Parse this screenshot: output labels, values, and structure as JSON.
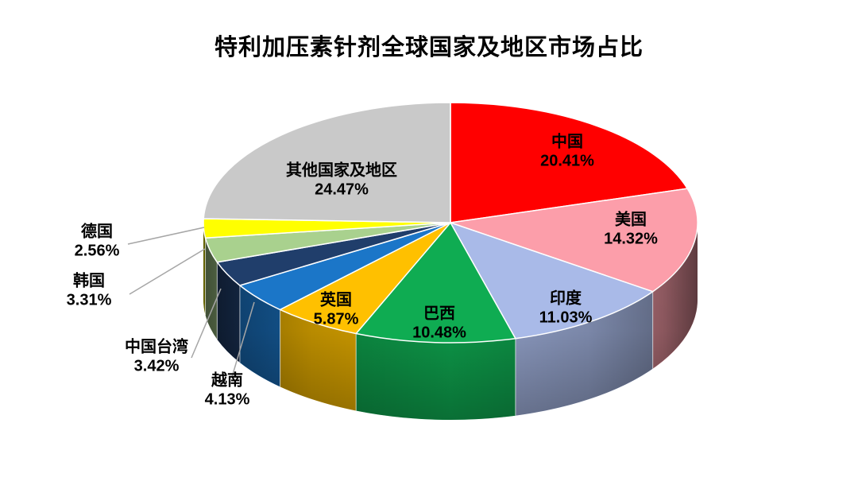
{
  "chart_data": {
    "type": "pie",
    "style": "3d",
    "title": "特利加压素针剂全球国家及地区市场占比",
    "unit": "%",
    "direction": "clockwise",
    "start_angle_deg": 0,
    "legend": "none",
    "label_style": "bold black category + percent; small slices labeled outside with gray leader lines",
    "leader_line_color": "#a6a6a6",
    "slice_border_color": "#ffffff",
    "slices": [
      {
        "label": "中国",
        "value": 20.41,
        "display": "20.41%",
        "color": "#ff0000"
      },
      {
        "label": "美国",
        "value": 14.32,
        "display": "14.32%",
        "color": "#fc9eaa"
      },
      {
        "label": "印度",
        "value": 11.03,
        "display": "11.03%",
        "color": "#a9bae8"
      },
      {
        "label": "巴西",
        "value": 10.48,
        "display": "10.48%",
        "color": "#0fac52"
      },
      {
        "label": "英国",
        "value": 5.87,
        "display": "5.87%",
        "color": "#ffc000"
      },
      {
        "label": "越南",
        "value": 4.13,
        "display": "4.13%",
        "color": "#1b76c8"
      },
      {
        "label": "中国台湾",
        "value": 3.42,
        "display": "3.42%",
        "color": "#203e6b"
      },
      {
        "label": "韩国",
        "value": 3.31,
        "display": "3.31%",
        "color": "#a9d18e"
      },
      {
        "label": "德国",
        "value": 2.56,
        "display": "2.56%",
        "color": "#ffff00"
      },
      {
        "label": "其他国家及地区",
        "value": 24.47,
        "display": "24.47%",
        "color": "#c9c9c9"
      }
    ]
  }
}
